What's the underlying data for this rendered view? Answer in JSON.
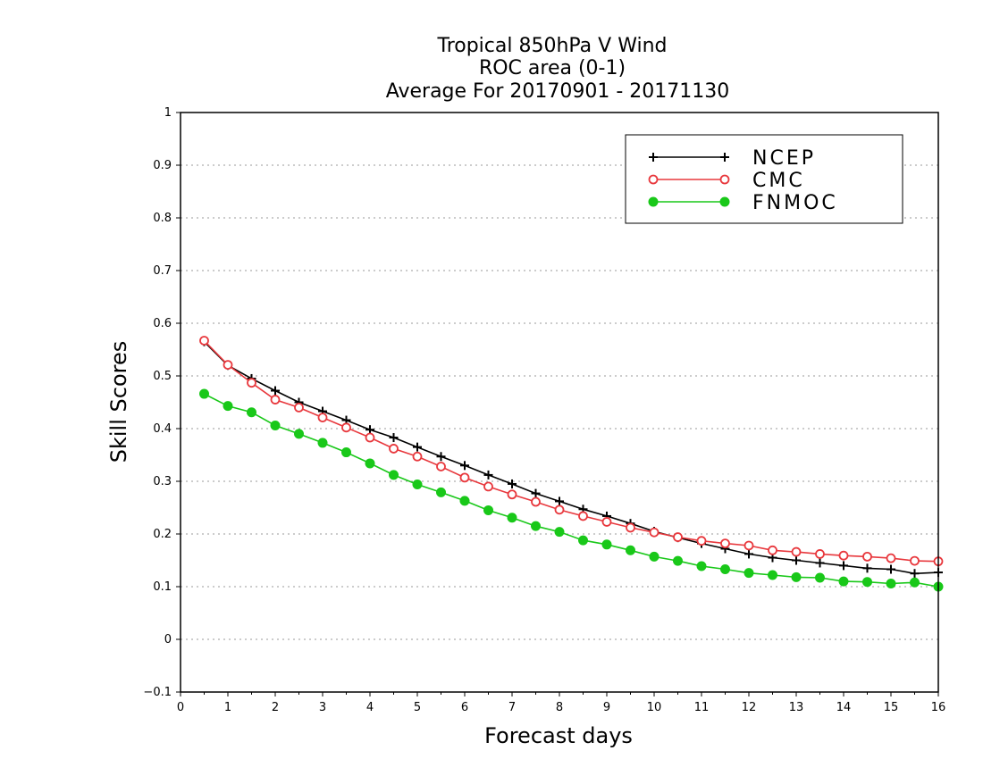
{
  "chart_data": {
    "type": "line",
    "title_lines": [
      "Tropical 850hPa V Wind",
      "ROC area (0-1)",
      "Average For 20170901 - 20171130"
    ],
    "xlabel": "Forecast days",
    "ylabel": "Skill Scores",
    "xlim": [
      0,
      16
    ],
    "ylim": [
      -0.1,
      1
    ],
    "x_ticks": [
      "0",
      "1",
      "2",
      "3",
      "4",
      "5",
      "6",
      "7",
      "8",
      "9",
      "10",
      "11",
      "12",
      "13",
      "14",
      "15",
      "16"
    ],
    "y_ticks": [
      "−0.1",
      "0",
      "0.1",
      "0.2",
      "0.3",
      "0.4",
      "0.5",
      "0.6",
      "0.7",
      "0.8",
      "0.9",
      "1"
    ],
    "grid": "horizontal dotted",
    "legend_position": "top-right",
    "x": [
      0.5,
      1,
      1.5,
      2,
      2.5,
      3,
      3.5,
      4,
      4.5,
      5,
      5.5,
      6,
      6.5,
      7,
      7.5,
      8,
      8.5,
      9,
      9.5,
      10,
      10.5,
      11,
      11.5,
      12,
      12.5,
      13,
      13.5,
      14,
      14.5,
      15,
      15.5,
      16
    ],
    "series": [
      {
        "name": "NCEP",
        "color": "#000000",
        "marker": "plus",
        "values": [
          0.565,
          0.52,
          0.495,
          0.472,
          0.45,
          0.433,
          0.416,
          0.398,
          0.383,
          0.365,
          0.347,
          0.33,
          0.312,
          0.295,
          0.277,
          0.262,
          0.247,
          0.234,
          0.22,
          0.205,
          0.193,
          0.182,
          0.172,
          0.162,
          0.155,
          0.15,
          0.145,
          0.14,
          0.135,
          0.133,
          0.125,
          0.127
        ]
      },
      {
        "name": "CMC",
        "color": "#e8383d",
        "marker": "open-circle",
        "values": [
          0.567,
          0.521,
          0.487,
          0.455,
          0.44,
          0.421,
          0.402,
          0.383,
          0.362,
          0.347,
          0.328,
          0.307,
          0.29,
          0.275,
          0.261,
          0.246,
          0.234,
          0.223,
          0.212,
          0.203,
          0.194,
          0.187,
          0.182,
          0.178,
          0.169,
          0.166,
          0.162,
          0.159,
          0.157,
          0.154,
          0.149,
          0.148
        ]
      },
      {
        "name": "FNMOC",
        "color": "#19c819",
        "marker": "filled-circle",
        "values": [
          0.466,
          0.443,
          0.431,
          0.406,
          0.39,
          0.373,
          0.355,
          0.334,
          0.312,
          0.294,
          0.279,
          0.263,
          0.245,
          0.231,
          0.215,
          0.204,
          0.188,
          0.18,
          0.169,
          0.157,
          0.149,
          0.139,
          0.133,
          0.126,
          0.122,
          0.118,
          0.117,
          0.11,
          0.109,
          0.106,
          0.108,
          0.1
        ]
      }
    ]
  }
}
